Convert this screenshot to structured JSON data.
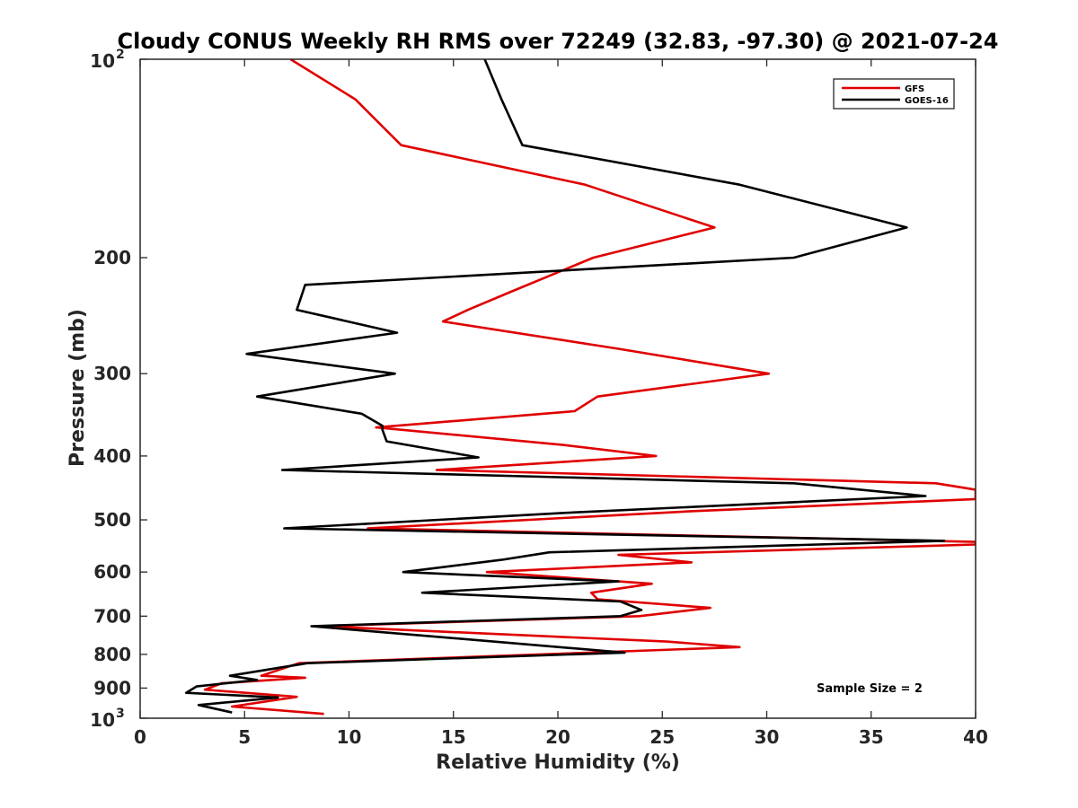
{
  "chart_data": {
    "type": "line",
    "title": "Cloudy CONUS Weekly RH RMS over 72249 (32.83, -97.30) @ 2021-07-24",
    "xlabel": "Relative Humidity (%)",
    "ylabel": "Pressure (mb)",
    "xlim": [
      0,
      40
    ],
    "ylim": [
      100,
      1000
    ],
    "y_scale": "log",
    "y_reversed": true,
    "grid": false,
    "legend_position": "top-right",
    "x_ticks": [
      "0",
      "5",
      "10",
      "15",
      "20",
      "25",
      "30",
      "35",
      "40"
    ],
    "y_ticks": [
      {
        "value": 100,
        "base": "10",
        "exp": "2"
      },
      {
        "value": 200,
        "label": "200"
      },
      {
        "value": 300,
        "label": "300"
      },
      {
        "value": 400,
        "label": "400"
      },
      {
        "value": 500,
        "label": "500"
      },
      {
        "value": 600,
        "label": "600"
      },
      {
        "value": 700,
        "label": "700"
      },
      {
        "value": 800,
        "label": "800"
      },
      {
        "value": 900,
        "label": "900"
      },
      {
        "value": 1000,
        "base": "10",
        "exp": "3"
      }
    ],
    "annotation": "Sample Size = 2",
    "series": [
      {
        "name": "GFS",
        "color": "#e00000",
        "points": [
          [
            7.2,
            100
          ],
          [
            10.3,
            115
          ],
          [
            12.5,
            135
          ],
          [
            21.3,
            155
          ],
          [
            27.5,
            180
          ],
          [
            21.7,
            200
          ],
          [
            17.8,
            225
          ],
          [
            15.7,
            240
          ],
          [
            14.5,
            250
          ],
          [
            22.9,
            275
          ],
          [
            30.1,
            300
          ],
          [
            21.9,
            325
          ],
          [
            20.8,
            342
          ],
          [
            11.3,
            362
          ],
          [
            20.3,
            385
          ],
          [
            24.7,
            400
          ],
          [
            14.2,
            420
          ],
          [
            38.1,
            440
          ],
          [
            40.0,
            450
          ],
          [
            40.0,
            465
          ],
          [
            26.5,
            485
          ],
          [
            10.9,
            515
          ],
          [
            40.0,
            540
          ],
          [
            40.0,
            545
          ],
          [
            22.9,
            565
          ],
          [
            26.4,
            580
          ],
          [
            16.6,
            600
          ],
          [
            24.5,
            625
          ],
          [
            21.6,
            645
          ],
          [
            21.9,
            660
          ],
          [
            27.3,
            680
          ],
          [
            23.9,
            700
          ],
          [
            8.6,
            725
          ],
          [
            25.2,
            765
          ],
          [
            28.7,
            780
          ],
          [
            7.6,
            825
          ],
          [
            5.8,
            862
          ],
          [
            7.9,
            868
          ],
          [
            3.9,
            885
          ],
          [
            3.1,
            905
          ],
          [
            7.5,
            928
          ],
          [
            4.4,
            960
          ],
          [
            8.8,
            985
          ]
        ]
      },
      {
        "name": "GOES-16",
        "color": "#000000",
        "points": [
          [
            16.5,
            100
          ],
          [
            17.3,
            115
          ],
          [
            18.3,
            135
          ],
          [
            28.7,
            155
          ],
          [
            36.7,
            180
          ],
          [
            31.3,
            200
          ],
          [
            7.9,
            220
          ],
          [
            7.5,
            240
          ],
          [
            12.3,
            260
          ],
          [
            5.1,
            280
          ],
          [
            12.2,
            300
          ],
          [
            5.6,
            325
          ],
          [
            10.6,
            345
          ],
          [
            11.6,
            360
          ],
          [
            11.6,
            365
          ],
          [
            11.8,
            380
          ],
          [
            16.2,
            402
          ],
          [
            6.8,
            420
          ],
          [
            31.3,
            440
          ],
          [
            37.6,
            460
          ],
          [
            20.3,
            488
          ],
          [
            6.9,
            515
          ],
          [
            38.5,
            538
          ],
          [
            19.6,
            560
          ],
          [
            17.3,
            575
          ],
          [
            12.6,
            600
          ],
          [
            22.9,
            620
          ],
          [
            13.5,
            645
          ],
          [
            23.0,
            665
          ],
          [
            24.0,
            685
          ],
          [
            23.0,
            700
          ],
          [
            8.2,
            725
          ],
          [
            23.2,
            795
          ],
          [
            8.0,
            825
          ],
          [
            4.3,
            862
          ],
          [
            5.6,
            875
          ],
          [
            2.7,
            895
          ],
          [
            2.2,
            915
          ],
          [
            6.6,
            930
          ],
          [
            2.8,
            955
          ],
          [
            4.4,
            980
          ]
        ]
      }
    ]
  }
}
